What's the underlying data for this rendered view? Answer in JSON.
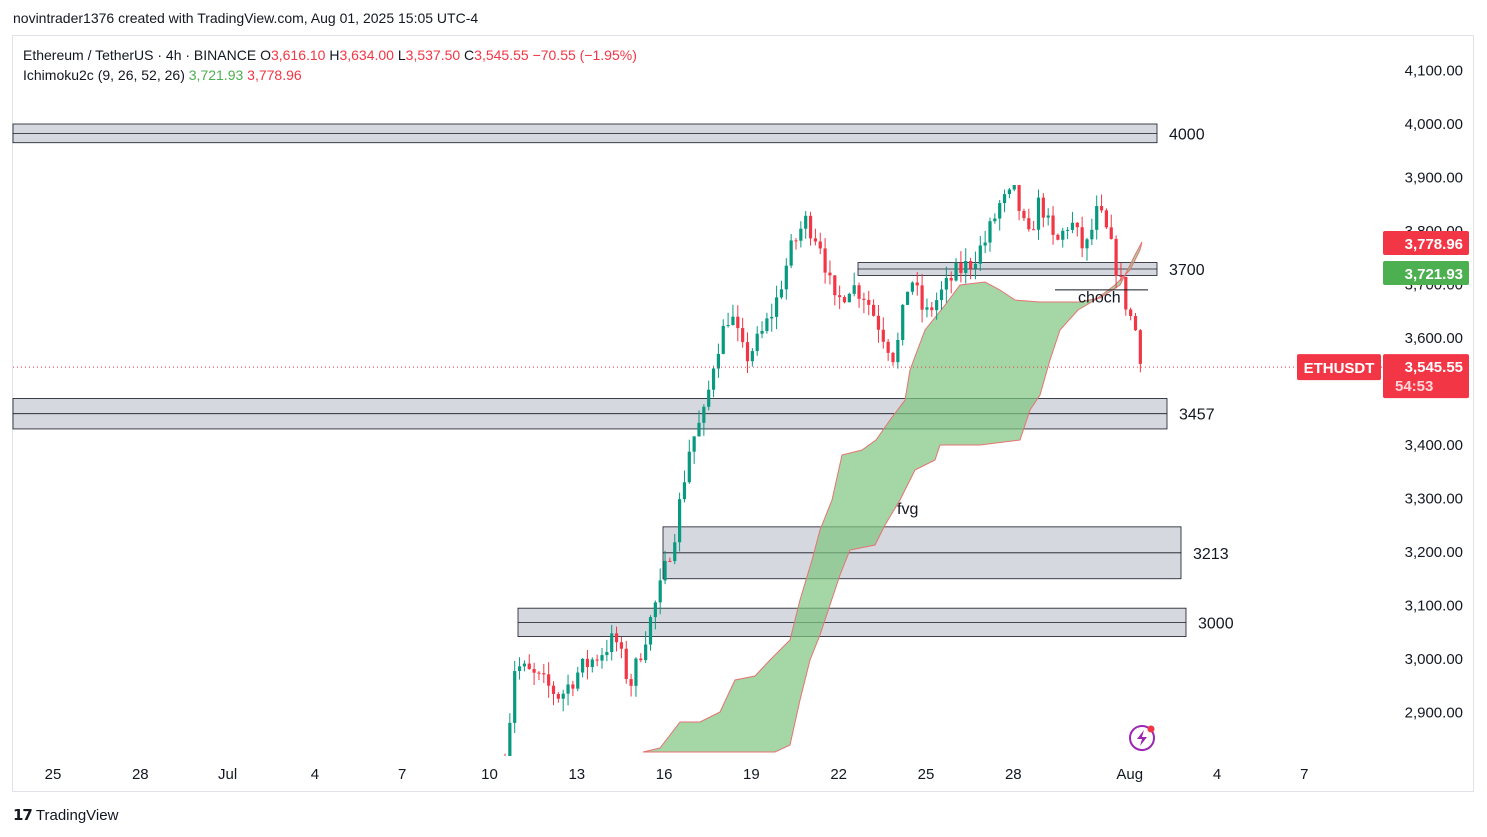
{
  "header": {
    "credit": "novintrader1376 created with TradingView.com, Aug 01, 2025 15:05 UTC-4"
  },
  "legend": {
    "symbol": "Ethereum / TetherUS · 4h · BINANCE",
    "o_label": "O",
    "o_value": "3,616.10",
    "h_label": "H",
    "h_value": "3,634.00",
    "l_label": "L",
    "l_value": "3,537.50",
    "c_label": "C",
    "c_value": "3,545.55",
    "change": "−70.55 (−1.95%)",
    "indicator": "Ichimoku2c (9, 26, 52, 26)",
    "indicator_a": "3,721.93",
    "indicator_b": "3,778.96"
  },
  "footer": {
    "brand": "TradingView"
  },
  "colors": {
    "up": "#089981",
    "down": "#f23645",
    "cloud": "#7dc67f",
    "cloud_line": "#e57373",
    "zone_fill": "#d1d4dc",
    "price_tag": "#f23645",
    "green_tag": "#4caf50"
  },
  "chart_data": {
    "type": "candlestick",
    "symbol": "ETHUSDT",
    "interval": "4h",
    "exchange": "BINANCE",
    "y_ticks": [
      "4,100.00",
      "4,000.00",
      "3,900.00",
      "3,800.00",
      "3,700.00",
      "3,600.00",
      "3,400.00",
      "3,300.00",
      "3,200.00",
      "3,100.00",
      "3,000.00",
      "2,900.00"
    ],
    "x_ticks": [
      "25",
      "28",
      "Jul",
      "4",
      "7",
      "10",
      "13",
      "16",
      "19",
      "22",
      "25",
      "28",
      "Aug",
      "4",
      "7"
    ],
    "last_price": {
      "label": "ETHUSDT",
      "value": "3,545.55",
      "countdown": "54:53"
    },
    "indicator_tags": [
      {
        "value": "3,778.96",
        "color": "#f23645"
      },
      {
        "value": "3,721.93",
        "color": "#4caf50"
      }
    ],
    "zones": [
      {
        "label": "4000",
        "top": 4000,
        "bottom": 3965,
        "from": "Jun 23",
        "to": "Aug 2"
      },
      {
        "label": "3700",
        "top": 3741,
        "bottom": 3717,
        "from": "Jul 21",
        "to": "Aug 1"
      },
      {
        "label": "3457",
        "top": 3487,
        "bottom": 3430,
        "from": "Jun 23",
        "to": "Aug 2"
      },
      {
        "label": "3213",
        "top": 3247,
        "bottom": 3150,
        "from": "Jul 16",
        "to": "Aug 2"
      },
      {
        "label": "3000",
        "top": 3095,
        "bottom": 3042,
        "from": "Jul 11",
        "to": "Aug 2"
      }
    ],
    "annotations": [
      {
        "text": "choch",
        "price": 3678
      },
      {
        "text": "fvg",
        "price": 3280
      }
    ]
  }
}
